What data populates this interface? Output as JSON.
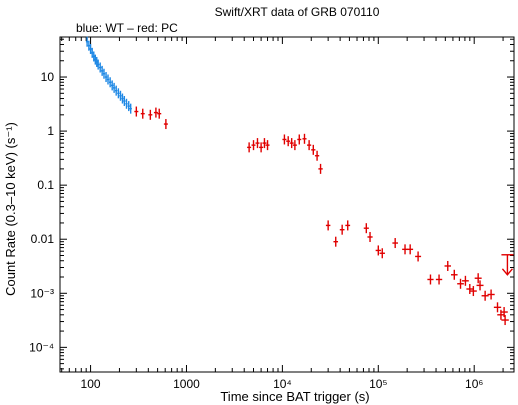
{
  "chart_data": {
    "type": "scatter",
    "title": "Swift/XRT data of GRB 070110",
    "subtitle": "blue: WT – red: PC",
    "xlabel": "Time since BAT trigger (s)",
    "ylabel": "Count Rate (0.3–10 keV) (s⁻¹)",
    "x_scale": "log",
    "y_scale": "log",
    "xlim": [
      48,
      2600000.0
    ],
    "ylim": [
      3.5e-05,
      55
    ],
    "x_ticks": [
      {
        "v": 100,
        "label": "100"
      },
      {
        "v": 1000,
        "label": "1000"
      },
      {
        "v": 10000,
        "label": "10⁴"
      },
      {
        "v": 100000,
        "label": "10⁵"
      },
      {
        "v": 1000000,
        "label": "10⁶"
      }
    ],
    "y_ticks": [
      {
        "v": 10,
        "label": "10"
      },
      {
        "v": 1,
        "label": "1"
      },
      {
        "v": 0.1,
        "label": "0.1"
      },
      {
        "v": 0.01,
        "label": "0.01"
      },
      {
        "v": 0.001,
        "label": "10⁻³"
      },
      {
        "v": 0.0001,
        "label": "10⁻⁴"
      }
    ],
    "colors": {
      "WT": "#1e88e5",
      "PC": "#e00000"
    },
    "series": [
      {
        "name": "WT",
        "points": [
          [
            92,
            45
          ],
          [
            96,
            38
          ],
          [
            100,
            33
          ],
          [
            104,
            28
          ],
          [
            108,
            24
          ],
          [
            112,
            21
          ],
          [
            116,
            19
          ],
          [
            120,
            17
          ],
          [
            126,
            15
          ],
          [
            132,
            13
          ],
          [
            138,
            11.5
          ],
          [
            145,
            10
          ],
          [
            152,
            9
          ],
          [
            160,
            8
          ],
          [
            168,
            7
          ],
          [
            176,
            6.3
          ],
          [
            185,
            5.6
          ],
          [
            195,
            5
          ],
          [
            205,
            4.5
          ],
          [
            215,
            4
          ],
          [
            225,
            3.6
          ],
          [
            237,
            3.2
          ],
          [
            250,
            2.9
          ],
          [
            262,
            2.6
          ]
        ]
      },
      {
        "name": "PC",
        "points": [
          [
            300,
            2.3
          ],
          [
            350,
            2.1
          ],
          [
            420,
            2.0
          ],
          [
            480,
            2.2
          ],
          [
            520,
            2.1
          ],
          [
            610,
            1.35
          ],
          [
            4500,
            0.5
          ],
          [
            5000,
            0.55
          ],
          [
            5500,
            0.6
          ],
          [
            6000,
            0.5
          ],
          [
            6500,
            0.6
          ],
          [
            7000,
            0.55
          ],
          [
            10500,
            0.7
          ],
          [
            11500,
            0.65
          ],
          [
            12500,
            0.6
          ],
          [
            13500,
            0.55
          ],
          [
            15000,
            0.7
          ],
          [
            17000,
            0.72
          ],
          [
            19000,
            0.55
          ],
          [
            21000,
            0.45
          ],
          [
            23000,
            0.35
          ],
          [
            25000,
            0.2
          ],
          [
            30000,
            0.018
          ],
          [
            36000,
            0.009
          ],
          [
            42000,
            0.015
          ],
          [
            48000,
            0.018
          ],
          [
            75000,
            0.016
          ],
          [
            82000,
            0.011
          ],
          [
            100000,
            0.0062
          ],
          [
            110000,
            0.0055
          ],
          [
            150000,
            0.0085
          ],
          [
            190000,
            0.0065
          ],
          [
            215000,
            0.0065
          ],
          [
            260000,
            0.0048
          ],
          [
            350000,
            0.0018
          ],
          [
            430000,
            0.0018
          ],
          [
            530000,
            0.0032
          ],
          [
            620000,
            0.0022
          ],
          [
            720000,
            0.0015
          ],
          [
            810000,
            0.0017
          ],
          [
            900000,
            0.0012
          ],
          [
            980000,
            0.0011
          ],
          [
            1100000,
            0.0019
          ],
          [
            1150000,
            0.0014
          ],
          [
            1300000,
            0.0009
          ],
          [
            1500000,
            0.00095
          ],
          [
            1750000,
            0.00055
          ],
          [
            1900000,
            0.0004
          ],
          [
            2050000,
            0.00045
          ],
          [
            2100000,
            0.00032
          ]
        ],
        "upper_limits": [
          [
            2220000,
            0.0022
          ]
        ]
      }
    ]
  }
}
